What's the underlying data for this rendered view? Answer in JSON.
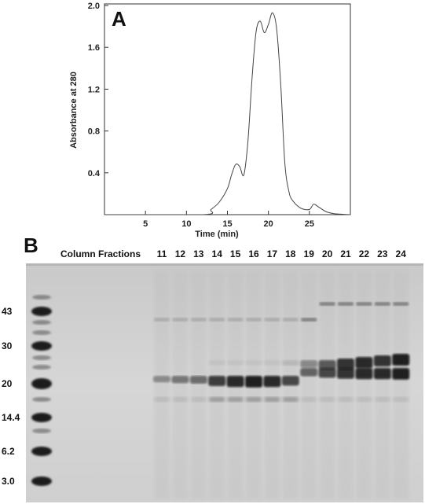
{
  "panel_a_label": "A",
  "panel_b_label": "B",
  "chart_data": {
    "type": "line",
    "title": "",
    "xlabel": "Time (min)",
    "ylabel": "Absorbance at 280",
    "xlim": [
      0,
      30
    ],
    "ylim": [
      0,
      2.0
    ],
    "x_ticks": [
      5,
      10,
      15,
      20,
      25
    ],
    "y_ticks": [
      0.4,
      0.8,
      1.2,
      1.6,
      2.0
    ],
    "x_tick_labels": [
      "5",
      "10",
      "15",
      "20",
      "25"
    ],
    "y_tick_labels": [
      "0.4",
      "0.8",
      "1.2",
      "1.6",
      "2.0"
    ],
    "grid": false,
    "x": [
      0,
      12,
      13,
      14,
      15,
      15.5,
      16,
      16.5,
      17,
      17.5,
      18,
      18.5,
      19,
      19.5,
      20,
      20.5,
      21,
      21.5,
      22,
      22.5,
      23,
      24,
      25,
      25.5,
      26,
      27,
      28,
      30
    ],
    "y": [
      0,
      0.0,
      0.05,
      0.12,
      0.25,
      0.38,
      0.48,
      0.46,
      0.38,
      0.7,
      1.3,
      1.75,
      1.85,
      1.74,
      1.82,
      1.93,
      1.78,
      1.25,
      0.5,
      0.22,
      0.13,
      0.06,
      0.05,
      0.1,
      0.08,
      0.03,
      0.01,
      0.0
    ]
  },
  "gel": {
    "header_label": "Column Fractions",
    "fractions": [
      "11",
      "12",
      "13",
      "14",
      "15",
      "16",
      "17",
      "18",
      "19",
      "20",
      "21",
      "22",
      "23",
      "24"
    ],
    "marker_labels": [
      "43",
      "30",
      "20",
      "14.4",
      "6.2",
      "3.0"
    ],
    "band_20kda_intensity": [
      0.35,
      0.45,
      0.5,
      0.75,
      0.85,
      0.9,
      0.85,
      0.7,
      0.55,
      0.7,
      0.8,
      0.85,
      0.85,
      0.9
    ],
    "band_24kda_intensity": [
      0.0,
      0.0,
      0.0,
      0.05,
      0.05,
      0.05,
      0.05,
      0.1,
      0.35,
      0.6,
      0.8,
      0.85,
      0.8,
      0.9
    ]
  }
}
